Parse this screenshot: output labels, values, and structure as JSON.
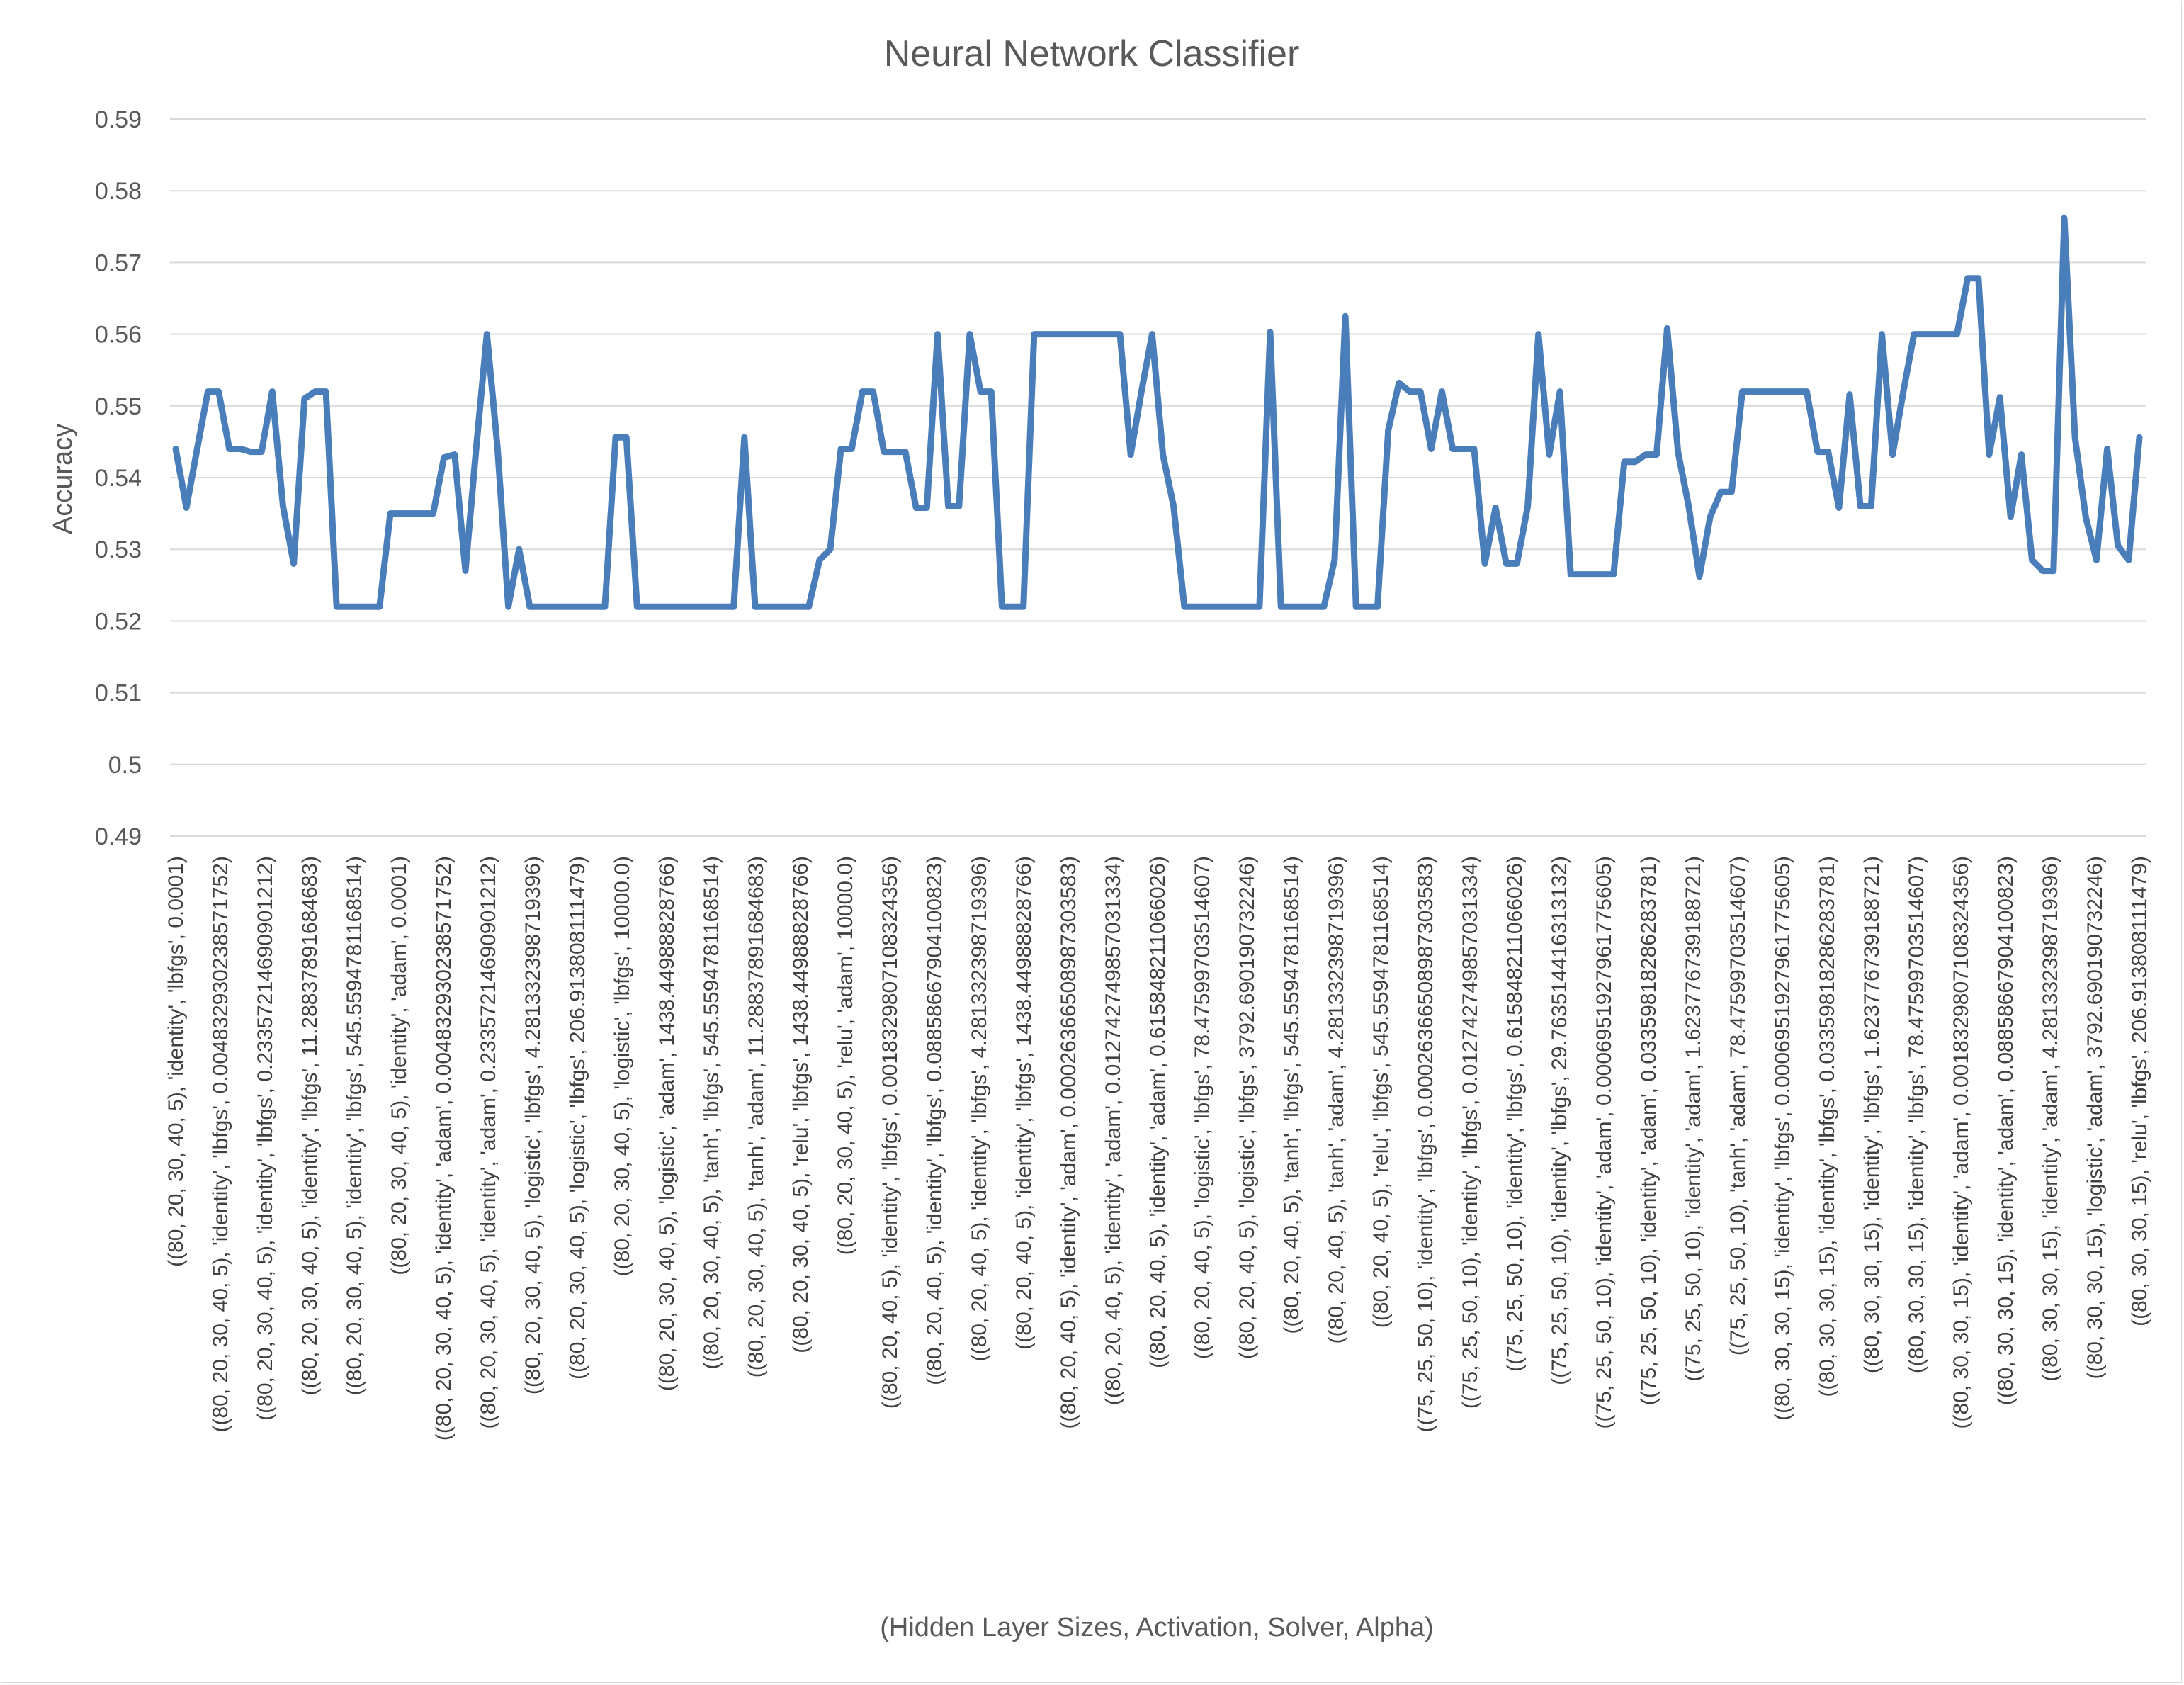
{
  "chart_data": {
    "type": "line",
    "title": "Neural Network Classifier",
    "xlabel": "(Hidden Layer Sizes, Activation, Solver, Alpha)",
    "ylabel": "Accuracy",
    "ylim": [
      0.49,
      0.59
    ],
    "yticks": [
      "0.49",
      "0.5",
      "0.51",
      "0.52",
      "0.53",
      "0.54",
      "0.55",
      "0.56",
      "0.57",
      "0.58",
      "0.59"
    ],
    "grid": true,
    "line_color": "#4a7ebb",
    "x_tick_labels": [
      "((80, 20, 30, 40, 5), 'identity', 'lbfgs', 0.0001)",
      "((80, 20, 30, 40, 5), 'identity', 'lbfgs', 0.004832930238571752)",
      "((80, 20, 30, 40, 5), 'identity', 'lbfgs', 0.23357214690901212)",
      "((80, 20, 30, 40, 5), 'identity', 'lbfgs', 11.28837891684683)",
      "((80, 20, 30, 40, 5), 'identity', 'lbfgs', 545.5594781168514)",
      "((80, 20, 30, 40, 5), 'identity', 'adam', 0.0001)",
      "((80, 20, 30, 40, 5), 'identity', 'adam', 0.004832930238571752)",
      "((80, 20, 30, 40, 5), 'identity', 'adam', 0.23357214690901212)",
      "((80, 20, 30, 40, 5), 'logistic', 'lbfgs', 4.281332398719396)",
      "((80, 20, 30, 40, 5), 'logistic', 'lbfgs', 206.913808111479)",
      "((80, 20, 30, 40, 5), 'logistic', 'lbfgs', 10000.0)",
      "((80, 20, 30, 40, 5), 'logistic', 'adam', 1438.44988828766)",
      "((80, 20, 30, 40, 5), 'tanh', 'lbfgs', 545.5594781168514)",
      "((80, 20, 30, 40, 5), 'tanh', 'adam', 11.28837891684683)",
      "((80, 20, 30, 40, 5), 'relu', 'lbfgs', 1438.44988828766)",
      "((80, 20, 30, 40, 5), 'relu', 'adam', 10000.0)",
      "((80, 20, 40, 5), 'identity', 'lbfgs', 0.0018329807108324356)",
      "((80, 20, 40, 5), 'identity', 'lbfgs', 0.08858667904100823)",
      "((80, 20, 40, 5), 'identity', 'lbfgs', 4.281332398719396)",
      "((80, 20, 40, 5), 'identity', 'lbfgs', 1438.44988828766)",
      "((80, 20, 40, 5), 'identity', 'adam', 0.0002636650898730358​3)",
      "((80, 20, 40, 5), 'identity', 'adam', 0.012742749857031334)",
      "((80, 20, 40, 5), 'identity', 'adam', 0.615848211066026)",
      "((80, 20, 40, 5), 'logistic', 'lbfgs', 78.47599703514607)",
      "((80, 20, 40, 5), 'logistic', 'lbfgs', 3792.690190732246)",
      "((80, 20, 40, 5), 'tanh', 'lbfgs', 545.5594781168514)",
      "((80, 20, 40, 5), 'tanh', 'adam', 4.281332398719396)",
      "((80, 20, 40, 5), 'relu', 'lbfgs', 545.5594781168514)",
      "((75, 25, 50, 10), 'identity', 'lbfgs', 0.0002636650898730358​3)",
      "((75, 25, 50, 10), 'identity', 'lbfgs', 0.012742749857031334)",
      "((75, 25, 50, 10), 'identity', 'lbfgs', 0.615848211066026)",
      "((75, 25, 50, 10), 'identity', 'lbfgs', 29.763514416313132)",
      "((75, 25, 50, 10), 'identity', 'adam', 0.0006951927961775605)",
      "((75, 25, 50, 10), 'identity', 'adam', 0.03359818286283781)",
      "((75, 25, 50, 10), 'identity', 'adam', 1.623776739188721)",
      "((75, 25, 50, 10), 'tanh', 'adam', 78.47599703514607)",
      "((80, 30, 30, 15), 'identity', 'lbfgs', 0.0006951927961775605)",
      "((80, 30, 30, 15), 'identity', 'lbfgs', 0.03359818286283781)",
      "((80, 30, 30, 15), 'identity', 'lbfgs', 1.623776739188721)",
      "((80, 30, 30, 15), 'identity', 'lbfgs', 78.47599703514607)",
      "((80, 30, 30, 15), 'identity', 'adam', 0.0018329807108324356)",
      "((80, 30, 30, 15), 'identity', 'adam', 0.08858667904100823)",
      "((80, 30, 30, 15), 'identity', 'adam', 4.281332398719396)",
      "((80, 30, 30, 15), 'logistic', 'adam', 3792.690190732246)",
      "((80, 30, 30, 15), 'relu', 'lbfgs', 206.913808111479)"
    ],
    "series": [
      {
        "values": [
          0.544,
          0.5358,
          0.544,
          0.552,
          0.552,
          0.544,
          0.544,
          0.5436,
          0.5436,
          0.552,
          0.536,
          0.528,
          0.551,
          0.552,
          0.552,
          0.522,
          0.522,
          0.522,
          0.522,
          0.522,
          0.535,
          0.535,
          0.535,
          0.535,
          0.535,
          0.5428,
          0.5432,
          0.527,
          0.544,
          0.56,
          0.544,
          0.522,
          0.53,
          0.522,
          0.522,
          0.522,
          0.522,
          0.522,
          0.522,
          0.522,
          0.522,
          0.5456,
          0.5456,
          0.522,
          0.522,
          0.522,
          0.522,
          0.522,
          0.522,
          0.522,
          0.522,
          0.522,
          0.522,
          0.5456,
          0.522,
          0.522,
          0.522,
          0.522,
          0.522,
          0.522,
          0.5285,
          0.53,
          0.544,
          0.544,
          0.552,
          0.552,
          0.5436,
          0.5436,
          0.5436,
          0.5358,
          0.5358,
          0.56,
          0.536,
          0.536,
          0.56,
          0.552,
          0.552,
          0.522,
          0.522,
          0.522,
          0.56,
          0.56,
          0.56,
          0.56,
          0.56,
          0.56,
          0.56,
          0.56,
          0.56,
          0.5432,
          0.552,
          0.56,
          0.5432,
          0.536,
          0.522,
          0.522,
          0.522,
          0.522,
          0.522,
          0.522,
          0.522,
          0.522,
          0.5603,
          0.522,
          0.522,
          0.522,
          0.522,
          0.522,
          0.5285,
          0.5625,
          0.522,
          0.522,
          0.522,
          0.5466,
          0.5532,
          0.552,
          0.552,
          0.544,
          0.552,
          0.544,
          0.544,
          0.544,
          0.528,
          0.5358,
          0.528,
          0.528,
          0.536,
          0.56,
          0.5432,
          0.552,
          0.5265,
          0.5265,
          0.5265,
          0.5265,
          0.5265,
          0.5422,
          0.5422,
          0.5432,
          0.5432,
          0.5608,
          0.5436,
          0.536,
          0.5262,
          0.5345,
          0.538,
          0.538,
          0.552,
          0.552,
          0.552,
          0.552,
          0.552,
          0.552,
          0.552,
          0.5436,
          0.5436,
          0.5358,
          0.5516,
          0.536,
          0.536,
          0.56,
          0.5432,
          0.552,
          0.56,
          0.56,
          0.56,
          0.56,
          0.56,
          0.5678,
          0.5678,
          0.5432,
          0.5512,
          0.5345,
          0.5432,
          0.5285,
          0.527,
          0.527,
          0.5762,
          0.5456,
          0.5345,
          0.5285,
          0.544,
          0.5305,
          0.5285,
          0.5456
        ]
      }
    ]
  }
}
